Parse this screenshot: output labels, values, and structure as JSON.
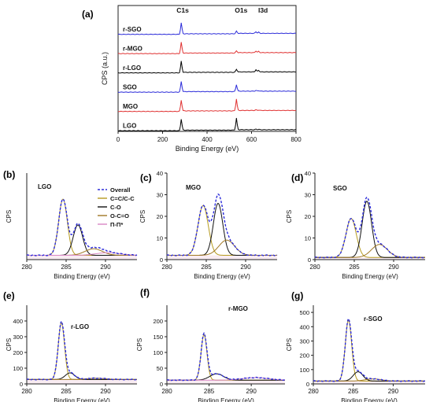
{
  "panels": [
    {
      "id": "a",
      "letter": "(a)",
      "type": "line",
      "xlabel": "Binding Energy (eV)",
      "ylabel": "CPS (a.u.)",
      "xlim": [
        0,
        800
      ],
      "xticks": [
        0,
        200,
        400,
        600,
        800
      ],
      "peak_labels": [
        {
          "text": "C1s",
          "x": 284
        },
        {
          "text": "O1s",
          "x": 532
        },
        {
          "text": "I3d",
          "x": 630
        }
      ],
      "samples": [
        {
          "name": "r-SGO",
          "color": "#2b2bd9",
          "c1s": 0.82,
          "o1s": 0.18,
          "i3d": 0.12
        },
        {
          "name": "r-MGO",
          "color": "#e03232",
          "c1s": 0.8,
          "o1s": 0.15,
          "i3d": 0.12
        },
        {
          "name": "r-LGO",
          "color": "#000000",
          "c1s": 0.82,
          "o1s": 0.22,
          "i3d": 0.16
        },
        {
          "name": "SGO",
          "color": "#2b2bd9",
          "c1s": 0.75,
          "o1s": 0.5,
          "i3d": 0.05
        },
        {
          "name": "MGO",
          "color": "#e03232",
          "c1s": 0.8,
          "o1s": 0.85,
          "i3d": 0.04
        },
        {
          "name": "LGO",
          "color": "#000000",
          "c1s": 0.82,
          "o1s": 0.85,
          "i3d": 0.04
        }
      ]
    },
    {
      "id": "b",
      "letter": "(b)",
      "title": "LGO",
      "type": "line",
      "xlabel": "Binding Energy (eV)",
      "ylabel": "CPS",
      "xlim": [
        280,
        294
      ],
      "xticks": [
        280,
        285,
        290
      ],
      "ylim": [
        0,
        40
      ],
      "yticks": [],
      "baseline": 2,
      "components": [
        {
          "name": "C=C/C-C",
          "center": 284.6,
          "height": 26,
          "width": 0.55
        },
        {
          "name": "C-O",
          "center": 286.5,
          "height": 14,
          "width": 0.6
        },
        {
          "name": "O-C=O",
          "center": 288.5,
          "height": 3,
          "width": 1.1
        },
        {
          "name": "π-π*",
          "center": 290.3,
          "height": 1.2,
          "width": 1.5
        }
      ],
      "legend": [
        "Overall",
        "C=C/C-C",
        "C-O",
        "O-C=O",
        "Π-Π*"
      ]
    },
    {
      "id": "c",
      "letter": "(c)",
      "title": "MGO",
      "type": "line",
      "xlabel": "Binding Energy (eV)",
      "ylabel": "CPS",
      "xlim": [
        280,
        294
      ],
      "xticks": [
        280,
        285,
        290
      ],
      "ylim": [
        0,
        40
      ],
      "yticks": [
        0,
        10,
        20,
        30,
        40
      ],
      "baseline": 2,
      "components": [
        {
          "name": "C=C/C-C",
          "center": 284.6,
          "height": 23,
          "width": 0.65
        },
        {
          "name": "C-O",
          "center": 286.5,
          "height": 24,
          "width": 0.6
        },
        {
          "name": "O-C=O",
          "center": 287.6,
          "height": 7,
          "width": 1.0
        }
      ]
    },
    {
      "id": "d",
      "letter": "(d)",
      "title": "SGO",
      "type": "line",
      "xlabel": "Binding Energy (eV)",
      "ylabel": "CPS",
      "xlim": [
        280,
        294
      ],
      "xticks": [
        280,
        285,
        290
      ],
      "ylim": [
        0,
        40
      ],
      "yticks": [
        0,
        10,
        20,
        30,
        40
      ],
      "baseline": 1,
      "components": [
        {
          "name": "C=C/C-C",
          "center": 284.6,
          "height": 18,
          "width": 0.65
        },
        {
          "name": "C-O",
          "center": 286.6,
          "height": 26,
          "width": 0.6
        },
        {
          "name": "O-C=O",
          "center": 288.2,
          "height": 6,
          "width": 1.0
        }
      ]
    },
    {
      "id": "e",
      "letter": "(e)",
      "title": "r-LGO",
      "type": "line",
      "xlabel": "Binding Energy (eV)",
      "ylabel": "CPS",
      "xlim": [
        280,
        294
      ],
      "xticks": [
        280,
        285,
        290
      ],
      "ylim": [
        0,
        500
      ],
      "yticks": [
        0,
        100,
        200,
        300,
        400
      ],
      "baseline": 28,
      "components": [
        {
          "name": "C=C/C-C",
          "center": 284.4,
          "height": 360,
          "width": 0.4
        },
        {
          "name": "C-O",
          "center": 285.5,
          "height": 42,
          "width": 0.6
        },
        {
          "name": "O-C=O",
          "center": 288.8,
          "height": 8,
          "width": 1.2
        }
      ]
    },
    {
      "id": "f",
      "letter": "(f)",
      "title": "r-MGO",
      "type": "line",
      "xlabel": "Binding Energy (eV)",
      "ylabel": "CPS",
      "xlim": [
        280,
        294
      ],
      "xticks": [
        280,
        285,
        290
      ],
      "ylim": [
        0,
        250
      ],
      "yticks": [
        0,
        50,
        100,
        150,
        200
      ],
      "baseline": 12,
      "components": [
        {
          "name": "C=C/C-C",
          "center": 284.4,
          "height": 145,
          "width": 0.35
        },
        {
          "name": "C-O",
          "center": 285.9,
          "height": 20,
          "width": 0.8
        },
        {
          "name": "π-π*",
          "center": 290.5,
          "height": 8,
          "width": 1.5
        }
      ]
    },
    {
      "id": "g",
      "letter": "(g)",
      "title": "r-SGO",
      "type": "line",
      "xlabel": "Binding Energy (eV)",
      "ylabel": "CPS",
      "xlim": [
        280,
        294
      ],
      "xticks": [
        280,
        285,
        290
      ],
      "ylim": [
        0,
        550
      ],
      "yticks": [
        0,
        100,
        200,
        300,
        400,
        500
      ],
      "baseline": 20,
      "components": [
        {
          "name": "C=C/C-C",
          "center": 284.4,
          "height": 425,
          "width": 0.4
        },
        {
          "name": "C-O",
          "center": 285.6,
          "height": 65,
          "width": 0.6
        },
        {
          "name": "O-C=O",
          "center": 287.5,
          "height": 15,
          "width": 1.0
        }
      ]
    }
  ],
  "colors": {
    "overall": "#2b2bd9",
    "C=C/C-C": "#b59a1e",
    "C-O": "#111111",
    "O-C=O": "#a07824",
    "π-π*": "#d986c4",
    "axis": "#222222"
  }
}
